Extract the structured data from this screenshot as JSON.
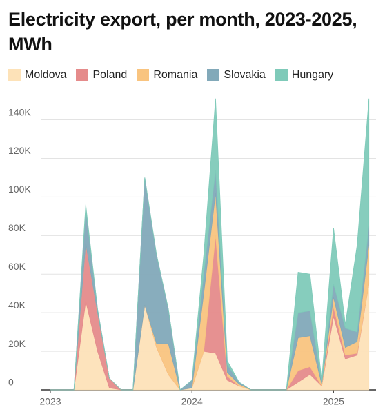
{
  "chart_data": {
    "type": "stacked_area",
    "title": "Electricity export, per month, 2023-2025, MWh",
    "categories": [
      "2023",
      null,
      null,
      null,
      null,
      null,
      null,
      null,
      null,
      null,
      null,
      null,
      "2024",
      null,
      null,
      null,
      null,
      null,
      null,
      null,
      null,
      null,
      null,
      null,
      "2025",
      null,
      null,
      null
    ],
    "series": [
      {
        "name": "Moldova",
        "color": "#fde2b8",
        "values": [
          0,
          0,
          0,
          46000,
          20000,
          1000,
          0,
          0,
          44000,
          22000,
          8000,
          0,
          1000,
          20000,
          19000,
          5000,
          2000,
          0,
          0,
          0,
          0,
          4000,
          8000,
          2000,
          38000,
          16000,
          18000,
          55000
        ]
      },
      {
        "name": "Poland",
        "color": "#e58b8b",
        "values": [
          0,
          0,
          0,
          30000,
          20000,
          5000,
          0,
          0,
          0,
          0,
          0,
          0,
          0,
          0,
          61000,
          2000,
          0,
          0,
          0,
          0,
          0,
          6000,
          4000,
          0,
          5000,
          2000,
          1000,
          0
        ]
      },
      {
        "name": "Romania",
        "color": "#f9c47f",
        "values": [
          0,
          0,
          0,
          0,
          0,
          0,
          0,
          0,
          0,
          2000,
          16000,
          0,
          0,
          30000,
          22000,
          2000,
          1000,
          0,
          0,
          0,
          0,
          17000,
          16000,
          1000,
          5000,
          4000,
          6000,
          20000
        ]
      },
      {
        "name": "Slovakia",
        "color": "#82a9b9",
        "values": [
          0,
          0,
          0,
          18000,
          2000,
          0,
          0,
          0,
          66000,
          46000,
          18000,
          0,
          4000,
          10000,
          12000,
          4000,
          1000,
          0,
          0,
          0,
          0,
          13000,
          13000,
          1000,
          7000,
          10000,
          5000,
          10000
        ]
      },
      {
        "name": "Hungary",
        "color": "#7fcab9",
        "values": [
          0,
          0,
          0,
          2000,
          0,
          0,
          0,
          0,
          0,
          0,
          0,
          0,
          0,
          10000,
          37000,
          2000,
          0,
          0,
          0,
          0,
          0,
          21000,
          19000,
          1000,
          29000,
          2000,
          45000,
          66000
        ]
      }
    ],
    "ylim": [
      0,
      152000
    ],
    "yticks": [
      0,
      {
        "value": 20000,
        "label": "20K"
      },
      {
        "value": 40000,
        "label": "40K"
      },
      {
        "value": 60000,
        "label": "60K"
      },
      {
        "value": 80000,
        "label": "80K"
      },
      {
        "value": 100000,
        "label": "100K"
      },
      {
        "value": 120000,
        "label": "120K"
      },
      {
        "value": 140000,
        "label": "140K"
      }
    ],
    "grid": true,
    "legend": "top"
  }
}
